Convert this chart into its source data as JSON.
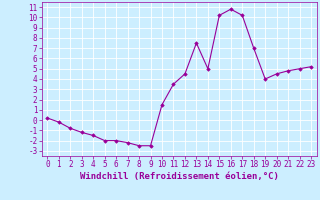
{
  "x": [
    0,
    1,
    2,
    3,
    4,
    5,
    6,
    7,
    8,
    9,
    10,
    11,
    12,
    13,
    14,
    15,
    16,
    17,
    18,
    19,
    20,
    21,
    22,
    23
  ],
  "y": [
    0.2,
    -0.2,
    -0.8,
    -1.2,
    -1.5,
    -2.0,
    -2.0,
    -2.2,
    -2.5,
    -2.5,
    1.5,
    3.5,
    4.5,
    7.5,
    5.0,
    10.2,
    10.8,
    10.2,
    7.0,
    4.0,
    4.5,
    4.8,
    5.0,
    5.2
  ],
  "line_color": "#990099",
  "marker": "D",
  "markersize": 1.8,
  "linewidth": 0.8,
  "xlabel": "Windchill (Refroidissement éolien,°C)",
  "xlim": [
    -0.5,
    23.5
  ],
  "ylim": [
    -3.5,
    11.5
  ],
  "yticks": [
    -3,
    -2,
    -1,
    0,
    1,
    2,
    3,
    4,
    5,
    6,
    7,
    8,
    9,
    10,
    11
  ],
  "xticks": [
    0,
    1,
    2,
    3,
    4,
    5,
    6,
    7,
    8,
    9,
    10,
    11,
    12,
    13,
    14,
    15,
    16,
    17,
    18,
    19,
    20,
    21,
    22,
    23
  ],
  "bg_color": "#cceeff",
  "grid_color": "#ffffff",
  "tick_color": "#990099",
  "label_color": "#990099",
  "xlabel_fontsize": 6.5,
  "tick_fontsize": 5.5
}
